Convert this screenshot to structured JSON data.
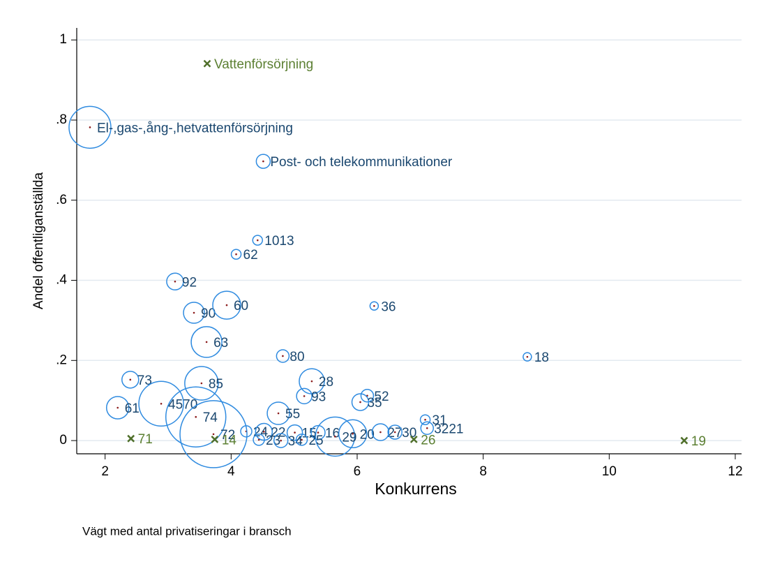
{
  "chart_data": {
    "type": "scatter",
    "xlabel": "Konkurrens",
    "ylabel": "Andel offentliganställda",
    "note": "Vägt med antal privatiseringar i bransch",
    "xlim": [
      1.55,
      12.1
    ],
    "ylim": [
      -0.033,
      1.03
    ],
    "xticks": [
      2,
      4,
      6,
      8,
      10,
      12
    ],
    "yticks": [
      0,
      {
        "value": 0.2,
        "label": ".2"
      },
      {
        "value": 0.4,
        "label": ".4"
      },
      {
        "value": 0.6,
        "label": ".6"
      },
      {
        "value": 0.8,
        "label": ".8"
      },
      1
    ],
    "grid": true,
    "series": [
      {
        "marker": "circle",
        "color": "#2f8be0",
        "label_color": "#1a476f",
        "labels": [
          "El-,gas-,ång-,hetvattenförsörjning",
          "Post- och telekommunikationer",
          "1013",
          "62",
          "92",
          "90",
          "60",
          "36",
          "63",
          "80",
          "18",
          "73",
          "85",
          "28",
          "52",
          "93",
          "35",
          "61",
          "4570",
          "55",
          "74",
          "31",
          "3221",
          "24",
          "22",
          "15",
          "16",
          "29",
          "20",
          "27",
          "30",
          "72",
          "23",
          "34",
          "25"
        ],
        "x": [
          1.76,
          4.51,
          4.42,
          4.08,
          3.11,
          3.41,
          3.93,
          6.27,
          3.61,
          4.82,
          8.7,
          2.4,
          3.53,
          5.28,
          6.16,
          5.16,
          6.05,
          2.2,
          2.89,
          4.75,
          3.44,
          7.08,
          7.11,
          4.24,
          4.52,
          5.01,
          5.38,
          5.65,
          5.93,
          6.37,
          6.6,
          3.72,
          4.44,
          4.79,
          5.12
        ],
        "values": [
          0.782,
          0.697,
          0.5,
          0.465,
          0.397,
          0.319,
          0.338,
          0.336,
          0.246,
          0.211,
          0.209,
          0.152,
          0.143,
          0.148,
          0.112,
          0.111,
          0.096,
          0.082,
          0.092,
          0.068,
          0.059,
          0.052,
          0.031,
          0.023,
          0.022,
          0.02,
          0.02,
          0.01,
          0.017,
          0.021,
          0.021,
          0.016,
          0.002,
          0.0,
          0.002
        ],
        "sizes": [
          30,
          10,
          7,
          7,
          12,
          15,
          20,
          6,
          22,
          9,
          6,
          12,
          24,
          18,
          9,
          11,
          12,
          16,
          32,
          16,
          43,
          7,
          9,
          8,
          12,
          11,
          10,
          28,
          20,
          12,
          10,
          48,
          8,
          10,
          8
        ]
      },
      {
        "marker": "x",
        "color": "#4f6f2a",
        "label_color": "#5b7f32",
        "labels": [
          "Vattenförsörjning",
          "71",
          "14",
          "26",
          "19"
        ],
        "x": [
          3.62,
          2.41,
          3.74,
          6.9,
          11.19
        ],
        "values": [
          0.941,
          0.005,
          0.003,
          0.003,
          0.0
        ]
      }
    ]
  }
}
